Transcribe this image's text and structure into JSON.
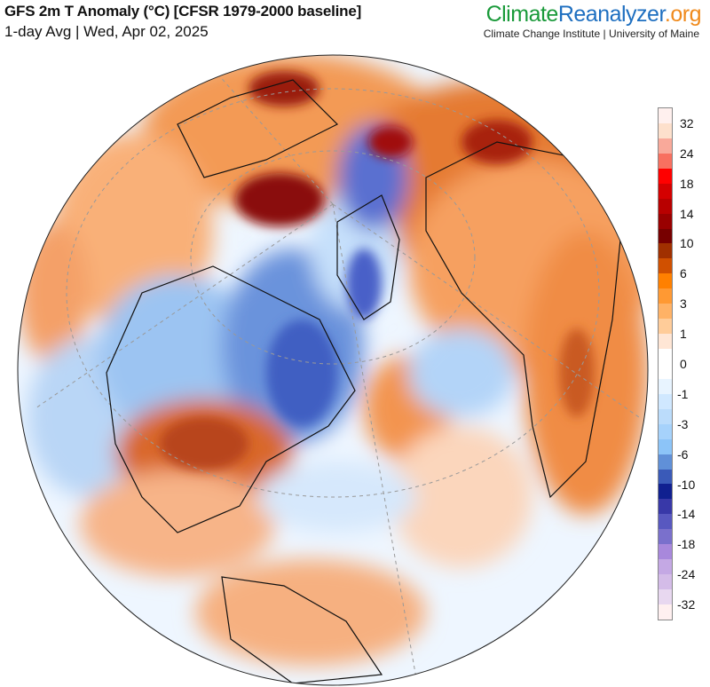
{
  "header": {
    "title": "GFS 2m T Anomaly (°C) [CFSR 1979-2000 baseline]",
    "subtitle": "1-day Avg | Wed, Apr 02, 2025"
  },
  "logo": {
    "part1": "Climate",
    "part2": "Reanalyzer",
    "part3": ".org",
    "institution": "Climate Change Institute | University of Maine"
  },
  "colorbar": {
    "labels": [
      "32",
      "24",
      "18",
      "14",
      "10",
      "6",
      "3",
      "1",
      "0",
      "-1",
      "-3",
      "-6",
      "-10",
      "-14",
      "-18",
      "-24",
      "-32"
    ],
    "colors": [
      "#fff0ee",
      "#fde0cc",
      "#f9a99a",
      "#f87060",
      "#ff0000",
      "#d40000",
      "#b80000",
      "#990000",
      "#770000",
      "#a03000",
      "#d05000",
      "#ff8000",
      "#ff9933",
      "#ffb266",
      "#ffcc99",
      "#ffe6d5",
      "#ffffff",
      "#ffffff",
      "#e8f4ff",
      "#d0e8ff",
      "#bbdcfb",
      "#a6d2fb",
      "#8cc4f8",
      "#6090d8",
      "#3a5ab8",
      "#102090",
      "#3838a8",
      "#5858c0",
      "#7a70cc",
      "#a888dc",
      "#c4a8e4",
      "#d4bce8",
      "#e8d8f0",
      "#fff0f0"
    ]
  }
}
